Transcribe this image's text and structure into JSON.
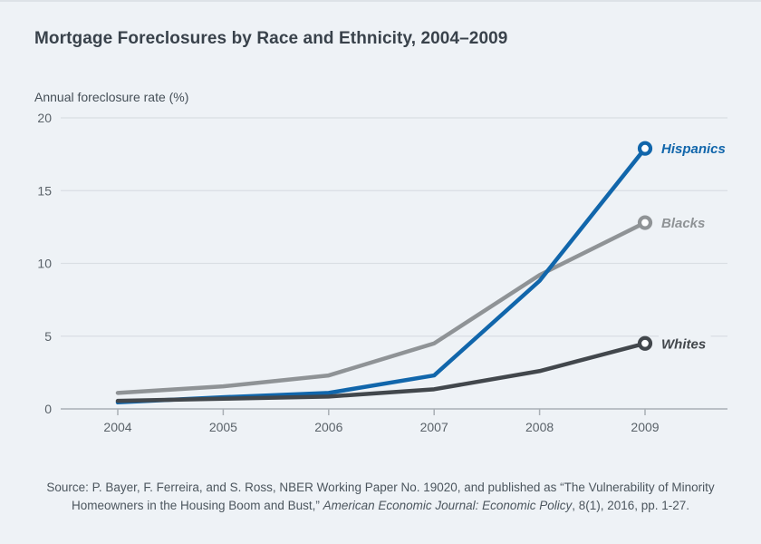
{
  "page": {
    "background_color": "#eef2f6",
    "top_border_color": "#dde2e7"
  },
  "chart_data": {
    "type": "line",
    "title": "Mortgage Foreclosures by Race and Ethnicity, 2004–2009",
    "ylabel": "Annual foreclosure rate (%)",
    "xlabel": "",
    "x": [
      2004,
      2005,
      2006,
      2007,
      2008,
      2009
    ],
    "ylim": [
      0,
      20
    ],
    "yticks": [
      0,
      5,
      10,
      15,
      20
    ],
    "grid": true,
    "legend_position": "labels at line endpoints, right side",
    "marker_style": "open ring at final data point",
    "series": [
      {
        "name": "Hispanics",
        "color": "#1166ab",
        "values": [
          0.45,
          0.8,
          1.1,
          2.3,
          8.8,
          17.9
        ]
      },
      {
        "name": "Blacks",
        "color": "#8f9396",
        "values": [
          1.1,
          1.55,
          2.3,
          4.5,
          9.2,
          12.8
        ]
      },
      {
        "name": "Whites",
        "color": "#42474c",
        "values": [
          0.55,
          0.7,
          0.85,
          1.35,
          2.6,
          4.5
        ]
      }
    ],
    "colors": {
      "gridline": "#d9dee3",
      "axis_line": "#a9afb5",
      "tick_label": "#5a6269",
      "marker_fill": "#fdfeff"
    }
  },
  "source": {
    "line1": "Source: P. Bayer, F. Ferreira, and S. Ross, NBER Working Paper No. 19020, and published as “The Vulnerability of Minority",
    "line2_pre": "Homeowners in the Housing Boom and Bust,” ",
    "line2_italic": "American Economic Journal: Economic Policy",
    "line2_post": ", 8(1), 2016, pp. 1-27."
  }
}
